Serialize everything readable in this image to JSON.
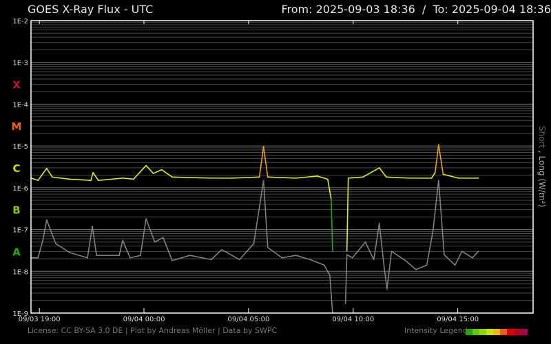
{
  "header": {
    "title": "GOES X-Ray Flux - UTC",
    "range": "From: 2025-09-03 18:36  /  To: 2025-09-04 18:36"
  },
  "footer": {
    "credits": "License: CC BY-SA 3.0 DE | Plot by Andreas Möller | Data by SWPC",
    "legend_label": "Intensity Legend",
    "legend_colors": [
      "#22aa00",
      "#66c800",
      "#8ed800",
      "#c8e400",
      "#f0b800",
      "#e86010",
      "#e00000",
      "#b80020",
      "#a80050"
    ]
  },
  "chart_data": {
    "type": "line",
    "title": "GOES X-Ray Flux - UTC",
    "ylabel": "Short , Long (W/m²)",
    "ylabel_parts": {
      "short": "Short",
      "sep": " , ",
      "long": "Long (W/m²)"
    },
    "yscale": "log",
    "ylim": [
      1e-09,
      0.01
    ],
    "xlim": [
      "2025-09-03T18:36",
      "2025-09-04T18:36"
    ],
    "grid": true,
    "y_ticks": [
      "1E-2",
      "1E-3",
      "1E-4",
      "1E-5",
      "1E-6",
      "1E-7",
      "1E-8",
      "1E-9"
    ],
    "x_ticks": [
      {
        "time": "2025-09-03T19:00",
        "label": "09/03 19:00"
      },
      {
        "time": "2025-09-04T00:00",
        "label": "09/04 00:00"
      },
      {
        "time": "2025-09-04T05:00",
        "label": "09/04 05:00"
      },
      {
        "time": "2025-09-04T10:00",
        "label": "09/04 10:00"
      },
      {
        "time": "2025-09-04T15:00",
        "label": "09/04 15:00"
      }
    ],
    "flare_classes": [
      {
        "label": "X",
        "flux": 0.0003,
        "color": "#c8102e"
      },
      {
        "label": "M",
        "flux": 3e-05,
        "color": "#f06010"
      },
      {
        "label": "C",
        "flux": 3e-06,
        "color": "#d8e000"
      },
      {
        "label": "B",
        "flux": 3e-07,
        "color": "#7ccc00"
      },
      {
        "label": "A",
        "flux": 3e-08,
        "color": "#22aa00"
      }
    ],
    "series": [
      {
        "name": "Long",
        "color": "#e0f000",
        "segments": [
          [
            [
              "2025-09-03T18:36",
              1.7e-06
            ],
            [
              "2025-09-03T18:56",
              1.5e-06
            ],
            [
              "2025-09-03T19:21",
              2.9e-06
            ],
            [
              "2025-09-03T19:37",
              1.8e-06
            ],
            [
              "2025-09-03T20:27",
              1.6e-06
            ],
            [
              "2025-09-03T21:28",
              1.5e-06
            ],
            [
              "2025-09-03T21:34",
              2.3e-06
            ],
            [
              "2025-09-03T21:49",
              1.5e-06
            ],
            [
              "2025-09-03T23:00",
              1.7e-06
            ],
            [
              "2025-09-03T23:30",
              1.6e-06
            ],
            [
              "2025-09-04T00:06",
              3.4e-06
            ],
            [
              "2025-09-04T00:27",
              2.2e-06
            ],
            [
              "2025-09-04T00:51",
              2.7e-06
            ],
            [
              "2025-09-04T01:21",
              1.8e-06
            ],
            [
              "2025-09-04T03:13",
              1.7e-06
            ],
            [
              "2025-09-04T04:14",
              1.7e-06
            ],
            [
              "2025-09-04T05:31",
              1.8e-06
            ],
            [
              "2025-09-04T05:43",
              9.6e-06
            ],
            [
              "2025-09-04T05:55",
              1.8e-06
            ],
            [
              "2025-09-04T07:16",
              1.7e-06
            ],
            [
              "2025-09-04T08:17",
              1.9e-06
            ],
            [
              "2025-09-04T08:47",
              1.6e-06
            ],
            [
              "2025-09-04T08:57",
              5.2e-07
            ],
            [
              "2025-09-04T09:01",
              3e-08
            ]
          ],
          [
            [
              "2025-09-04T09:42",
              3e-08
            ],
            [
              "2025-09-04T09:46",
              1.7e-06
            ],
            [
              "2025-09-04T10:28",
              1.8e-06
            ],
            [
              "2025-09-04T11:15",
              3e-06
            ],
            [
              "2025-09-04T11:35",
              1.8e-06
            ],
            [
              "2025-09-04T12:40",
              1.7e-06
            ],
            [
              "2025-09-04T13:45",
              1.7e-06
            ],
            [
              "2025-09-04T13:55",
              2.3e-06
            ],
            [
              "2025-09-04T14:05",
              1.07e-05
            ],
            [
              "2025-09-04T14:18",
              2.1e-06
            ],
            [
              "2025-09-04T15:02",
              1.7e-06
            ],
            [
              "2025-09-04T15:59",
              1.7e-06
            ]
          ]
        ]
      },
      {
        "name": "Short",
        "color": "#808080",
        "segments": [
          [
            [
              "2025-09-03T18:36",
              2.1e-08
            ],
            [
              "2025-09-03T18:56",
              2.1e-08
            ],
            [
              "2025-09-03T19:10",
              5.5e-08
            ],
            [
              "2025-09-03T19:21",
              1.7e-07
            ],
            [
              "2025-09-03T19:47",
              4.6e-08
            ],
            [
              "2025-09-03T20:27",
              2.8e-08
            ],
            [
              "2025-09-03T21:18",
              2.1e-08
            ],
            [
              "2025-09-03T21:32",
              1.2e-07
            ],
            [
              "2025-09-03T21:44",
              2.4e-08
            ],
            [
              "2025-09-03T22:49",
              2.4e-08
            ],
            [
              "2025-09-03T22:59",
              5.5e-08
            ],
            [
              "2025-09-03T23:20",
              2.1e-08
            ],
            [
              "2025-09-03T23:50",
              2.4e-08
            ],
            [
              "2025-09-04T00:06",
              1.8e-07
            ],
            [
              "2025-09-04T00:31",
              5e-08
            ],
            [
              "2025-09-04T00:55",
              6.4e-08
            ],
            [
              "2025-09-04T01:21",
              1.8e-08
            ],
            [
              "2025-09-04T02:12",
              2.4e-08
            ],
            [
              "2025-09-04T03:13",
              1.9e-08
            ],
            [
              "2025-09-04T03:43",
              3.3e-08
            ],
            [
              "2025-09-04T04:34",
              1.9e-08
            ],
            [
              "2025-09-04T05:15",
              4.6e-08
            ],
            [
              "2025-09-04T05:43",
              1.5e-06
            ],
            [
              "2025-09-04T05:55",
              3.7e-08
            ],
            [
              "2025-09-04T06:36",
              2.1e-08
            ],
            [
              "2025-09-04T07:16",
              2.4e-08
            ],
            [
              "2025-09-04T07:57",
              1.9e-08
            ],
            [
              "2025-09-04T08:37",
              1.4e-08
            ],
            [
              "2025-09-04T08:53",
              8e-09
            ],
            [
              "2025-09-04T09:01",
              1e-09
            ]
          ],
          [
            [
              "2025-09-04T09:38",
              1.7e-09
            ],
            [
              "2025-09-04T09:42",
              2.5e-08
            ],
            [
              "2025-09-04T09:58",
              2.1e-08
            ],
            [
              "2025-09-04T10:35",
              5e-08
            ],
            [
              "2025-09-04T10:59",
              1.9e-08
            ],
            [
              "2025-09-04T11:15",
              1.4e-07
            ],
            [
              "2025-09-04T11:29",
              1.2e-08
            ],
            [
              "2025-09-04T11:37",
              3.8e-09
            ],
            [
              "2025-09-04T11:50",
              3e-08
            ],
            [
              "2025-09-04T12:30",
              1.8e-08
            ],
            [
              "2025-09-04T13:00",
              1.1e-08
            ],
            [
              "2025-09-04T13:31",
              1.4e-08
            ],
            [
              "2025-09-04T13:49",
              9.4e-08
            ],
            [
              "2025-09-04T14:05",
              1.5e-06
            ],
            [
              "2025-09-04T14:21",
              2.5e-08
            ],
            [
              "2025-09-04T14:52",
              1.4e-08
            ],
            [
              "2025-09-04T15:12",
              3e-08
            ],
            [
              "2025-09-04T15:42",
              2.1e-08
            ],
            [
              "2025-09-04T15:59",
              3e-08
            ]
          ]
        ]
      }
    ]
  }
}
